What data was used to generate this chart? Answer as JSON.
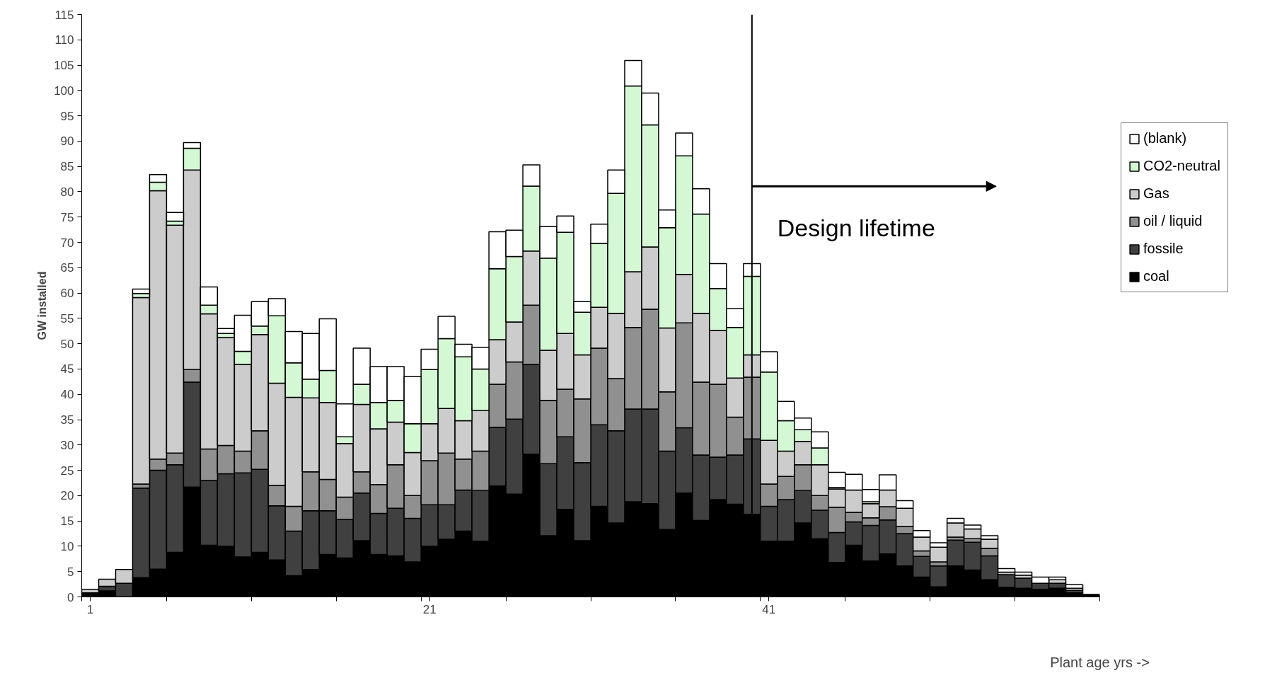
{
  "chart_data": {
    "type": "bar",
    "stacked": true,
    "ylabel": "GW installed",
    "xlabel": "Plant age yrs ->",
    "x": [
      1,
      2,
      3,
      4,
      5,
      6,
      7,
      8,
      9,
      10,
      11,
      12,
      13,
      14,
      15,
      16,
      17,
      18,
      19,
      20,
      21,
      22,
      23,
      24,
      25,
      26,
      27,
      28,
      29,
      30,
      31,
      32,
      33,
      34,
      35,
      36,
      37,
      38,
      39,
      40,
      41,
      42,
      43,
      44,
      45,
      46,
      47,
      48,
      49,
      50,
      51,
      52,
      53,
      54,
      55,
      56,
      57,
      58,
      59,
      60
    ],
    "xlim": [
      0.5,
      60.5
    ],
    "xticks": [
      {
        "value": 1,
        "label": "1"
      },
      {
        "value": 21,
        "label": "21"
      },
      {
        "value": 41,
        "label": "41"
      },
      {
        "value": 0.5,
        "label": null
      },
      {
        "value": 5.5,
        "label": null
      },
      {
        "value": 10.5,
        "label": null
      },
      {
        "value": 15.5,
        "label": null
      },
      {
        "value": 20.5,
        "label": null
      },
      {
        "value": 25.5,
        "label": null
      },
      {
        "value": 30.5,
        "label": null
      },
      {
        "value": 35.5,
        "label": null
      },
      {
        "value": 40.5,
        "label": null
      },
      {
        "value": 45.5,
        "label": null
      },
      {
        "value": 50.5,
        "label": null
      },
      {
        "value": 55.5,
        "label": null
      },
      {
        "value": 60.5,
        "label": null
      }
    ],
    "ylim": [
      0,
      115
    ],
    "yticks": [
      0,
      5,
      10,
      15,
      20,
      25,
      30,
      35,
      40,
      45,
      50,
      55,
      60,
      65,
      70,
      75,
      80,
      85,
      90,
      95,
      100,
      105,
      110,
      115
    ],
    "grid": false,
    "legend": "right",
    "ref_lines": [
      {
        "axis": "x",
        "value": 40,
        "label": "Design lifetime",
        "color": "#000000"
      }
    ],
    "series": [
      {
        "name": "coal",
        "color": "#000000",
        "values": [
          0.8,
          1.2,
          null,
          3.8,
          5.5,
          8.8,
          21.7,
          10.2,
          10,
          7.9,
          8.8,
          7.3,
          4.2,
          5.4,
          8.4,
          7.7,
          11.1,
          8.4,
          8.1,
          6.9,
          10,
          11.4,
          13,
          11,
          21.9,
          20.3,
          28.2,
          12.1,
          17.3,
          11.1,
          17.9,
          14.6,
          18.8,
          18.4,
          13.3,
          20.5,
          15.1,
          19.2,
          18.3,
          16.3,
          11,
          11,
          14.6,
          11.5,
          6.8,
          10.2,
          7.1,
          8.5,
          6.1,
          3.9,
          2,
          6.1,
          5.3,
          3.4,
          1.9,
          1.7,
          1.5,
          1.7,
          0.8,
          0.5
        ]
      },
      {
        "name": "fossile",
        "color": "#404040",
        "values": [
          null,
          0.9,
          2.7,
          17.7,
          19.5,
          17.3,
          20.7,
          12.8,
          14.3,
          16.6,
          16.4,
          10.7,
          8.8,
          11.6,
          8.6,
          7.6,
          9.4,
          8.1,
          9.4,
          8.6,
          8.2,
          6.8,
          8.1,
          10,
          11.6,
          14.8,
          17.7,
          14.2,
          14.3,
          15.4,
          16.1,
          18.2,
          18.3,
          18.7,
          15.5,
          12.9,
          12.9,
          8.4,
          9.7,
          14.9,
          6.9,
          8.2,
          6.4,
          5.6,
          5.9,
          4.6,
          7,
          6.7,
          6.4,
          4.1,
          4.1,
          5.1,
          5.5,
          4.7,
          2.5,
          2,
          1.2,
          1,
          0.5,
          0
        ]
      },
      {
        "name": "oil / liquid",
        "color": "#909090",
        "values": [
          0,
          0,
          0,
          0.8,
          2.2,
          2.3,
          2.5,
          6.2,
          5.6,
          4.3,
          7.6,
          4,
          4.9,
          7.7,
          6.2,
          4.4,
          4.2,
          5.7,
          8.6,
          4.5,
          8.7,
          10.2,
          6.1,
          7.8,
          8.5,
          11.3,
          11.7,
          12.5,
          9.4,
          12.6,
          15.1,
          10.3,
          16.1,
          19.7,
          11.7,
          20.7,
          14.4,
          14.4,
          7.5,
          12.2,
          4.4,
          4.6,
          5.1,
          2.9,
          5,
          1.9,
          1.5,
          2.6,
          1.4,
          1.1,
          0.8,
          0.6,
          0.7,
          1.5,
          0,
          0,
          0,
          0,
          0,
          0
        ]
      },
      {
        "name": "Gas",
        "color": "#cccccc",
        "values": [
          0.7,
          1.4,
          2.7,
          36.8,
          53,
          45,
          39.4,
          26.7,
          21.3,
          17.1,
          19,
          20.2,
          21.5,
          14.6,
          15.2,
          10.6,
          13.3,
          11,
          8.4,
          8.5,
          7.3,
          8.8,
          7.6,
          8,
          8.8,
          7.9,
          10.7,
          9.9,
          11,
          8.7,
          8.1,
          12.9,
          11,
          12.3,
          12.6,
          9.6,
          13.6,
          10.6,
          7.7,
          4.4,
          8.6,
          5,
          4.6,
          6.1,
          3.6,
          4.4,
          2.8,
          3.3,
          3.6,
          2.7,
          2.9,
          2.8,
          1.9,
          1.8,
          0.5,
          0.6,
          0,
          0.7,
          0.4,
          0
        ]
      },
      {
        "name": "CO2-neutral",
        "color": "#d4f8d4",
        "values": [
          0,
          0,
          0,
          0.8,
          1.7,
          0.8,
          4.3,
          1.7,
          0.8,
          2.6,
          1.7,
          13.3,
          6.8,
          3.7,
          6.3,
          1.3,
          4,
          5.2,
          4.3,
          5.7,
          10.7,
          13.8,
          12.6,
          8.2,
          14,
          12.9,
          12.8,
          18.2,
          20,
          8.4,
          12.6,
          23.7,
          36.7,
          24.1,
          19.8,
          23.4,
          19.6,
          8.3,
          10,
          15.5,
          13.5,
          6,
          2.3,
          3.3,
          0.3,
          null,
          0.4,
          0,
          0,
          0,
          0,
          0,
          0,
          0,
          0,
          0,
          0,
          0,
          0,
          0
        ]
      },
      {
        "name": "(blank)",
        "color": "#ffffff",
        "values": [
          0,
          0,
          0,
          0.9,
          1.5,
          1.7,
          1.1,
          3.6,
          1,
          7.1,
          4.8,
          3.4,
          6.2,
          9,
          10.2,
          6.5,
          7.1,
          7.1,
          6.7,
          9.3,
          4,
          4.4,
          2.5,
          4.3,
          7.3,
          5.2,
          4.2,
          6.2,
          3.2,
          2.1,
          3.8,
          4.6,
          5,
          6.3,
          3.5,
          4.5,
          5,
          4.9,
          3.7,
          2.5,
          4,
          3.8,
          2.3,
          3.2,
          3,
          3.1,
          2.4,
          3,
          1.5,
          1.3,
          0.9,
          0.9,
          0.8,
          0.7,
          0.7,
          0.6,
          1.2,
          0.5,
          0.7,
          0
        ]
      }
    ]
  }
}
